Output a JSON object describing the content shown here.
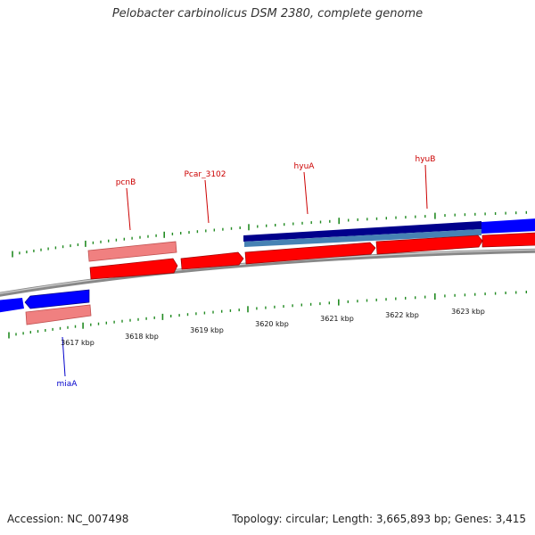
{
  "title": "Pelobacter carbinolicus DSM 2380, complete genome",
  "footer": {
    "accession": "Accession: NC_007498",
    "topology": "Topology: circular; Length: 3,665,893 bp; Genes: 3,415"
  },
  "colors": {
    "forward_gene": "#ff0000",
    "forward_gene_light": "#f08080",
    "reverse_gene": "#0000ff",
    "feature_dark": "#00008b",
    "feature_light": "#4682b4",
    "backbone": "#888888",
    "tick": "#228b22",
    "forward_label": "#cc0000",
    "reverse_label": "#0000cc"
  },
  "scale_labels": [
    "3617 kbp",
    "3618 kbp",
    "3619 kbp",
    "3620 kbp",
    "3621 kbp",
    "3622 kbp",
    "3623 kbp"
  ],
  "gene_labels": {
    "forward": [
      "pcnB",
      "Pcar_3102",
      "hyuA",
      "hyuB"
    ],
    "reverse": [
      "miaA"
    ]
  }
}
